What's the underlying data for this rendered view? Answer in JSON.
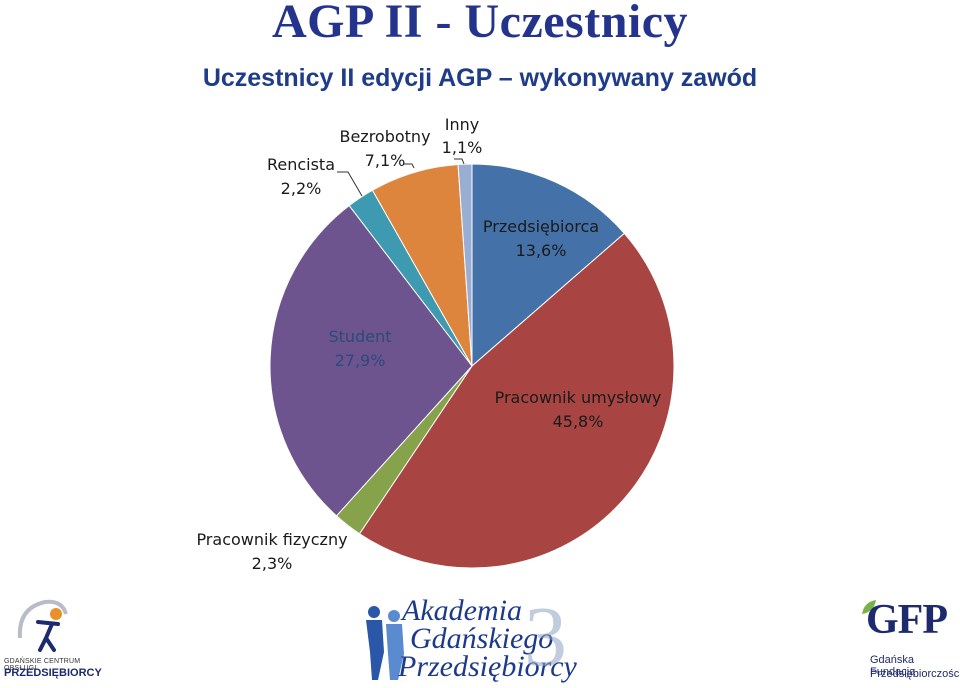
{
  "page": {
    "title": "AGP II - Uczestnicy"
  },
  "chart_data": {
    "type": "pie",
    "title": "Uczestnicy II edycji AGP – wykonywany zawód",
    "slices": [
      {
        "label": "Przedsiębiorca",
        "value_label": "13,6%",
        "value": 13.6,
        "color": "#4472a8"
      },
      {
        "label": "Pracownik umysłowy",
        "value_label": "45,8%",
        "value": 45.8,
        "color": "#a84542"
      },
      {
        "label": "Pracownik fizyczny",
        "value_label": "2,3%",
        "value": 2.3,
        "color": "#86a34b"
      },
      {
        "label": "Student",
        "value_label": "27,9%",
        "value": 27.9,
        "color": "#6d548f"
      },
      {
        "label": "Rencista",
        "value_label": "2,2%",
        "value": 2.2,
        "color": "#3d9ab0"
      },
      {
        "label": "Bezrobotny",
        "value_label": "7,1%",
        "value": 7.1,
        "color": "#dd853d"
      },
      {
        "label": "Inny",
        "value_label": "1,1%",
        "value": 1.1,
        "color": "#9aaed4"
      }
    ]
  },
  "footer": {
    "left_logo": {
      "line1": "GDAŃSKIE CENTRUM OBSŁUGI",
      "line2": "PRZEDSIĘBIORCY"
    },
    "center_logo": {
      "line1": "Akademia",
      "line2": "Gdańskiego",
      "line3": "Przedsiębiorcy",
      "number": "3"
    },
    "right_logo": {
      "mark": "GFP",
      "line1": "Gdańska Fundacja",
      "line2": "Przedsiębiorczości"
    }
  }
}
